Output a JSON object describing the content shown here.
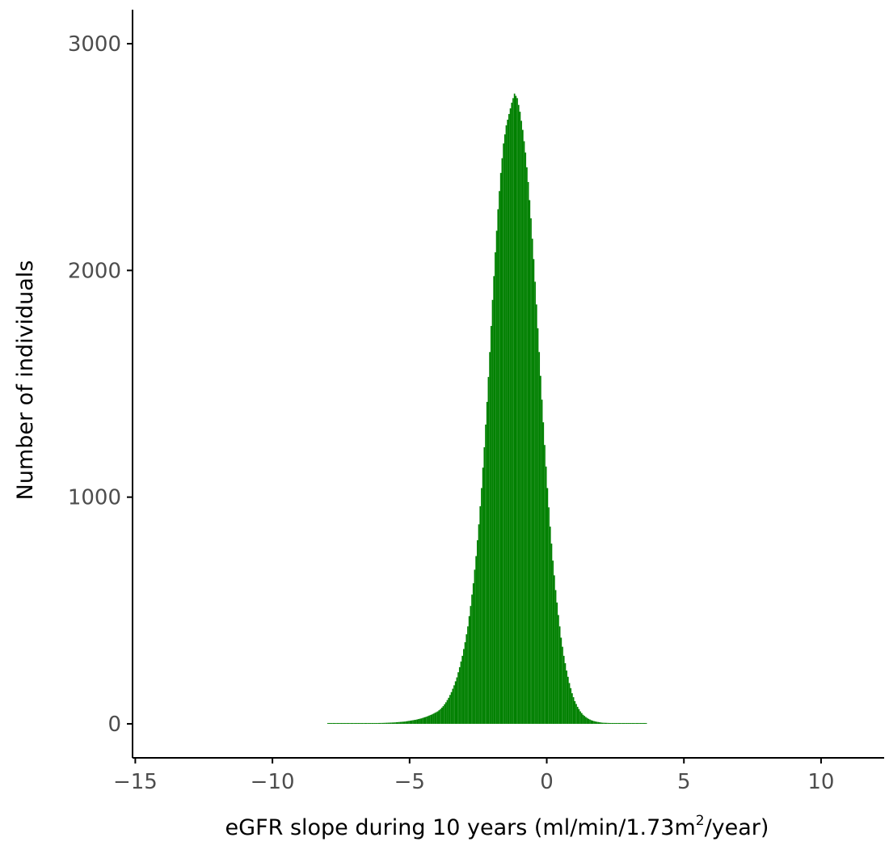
{
  "chart_data": {
    "type": "bar",
    "title": "",
    "xlabel": {
      "prefix": "eGFR slope during 10 years (ml/min/1.73m",
      "superscript": "2",
      "suffix": "/year)"
    },
    "ylabel": "Number of individuals",
    "xlim": [
      -15.1,
      12.3
    ],
    "ylim": [
      -150,
      3150
    ],
    "xticks": [
      -15,
      -10,
      -5,
      0,
      5,
      10
    ],
    "xtick_labels": [
      "−15",
      "−10",
      "−5",
      "0",
      "5",
      "10"
    ],
    "yticks": [
      0,
      1000,
      2000,
      3000
    ],
    "ytick_labels": [
      "0",
      "1000",
      "2000",
      "3000"
    ],
    "grid": false,
    "legend": "none",
    "bar_color": "#008000",
    "bin_width": 0.05,
    "bins_x": [
      -8.0,
      -7.5,
      -7.0,
      -6.5,
      -6.0,
      -5.8,
      -5.6,
      -5.4,
      -5.2,
      -5.0,
      -4.8,
      -4.6,
      -4.4,
      -4.2,
      -4.0,
      -3.9,
      -3.8,
      -3.7,
      -3.6,
      -3.5,
      -3.4,
      -3.3,
      -3.2,
      -3.1,
      -3.0,
      -2.9,
      -2.8,
      -2.7,
      -2.6,
      -2.5,
      -2.4,
      -2.3,
      -2.2,
      -2.1,
      -2.0,
      -1.9,
      -1.8,
      -1.7,
      -1.6,
      -1.5,
      -1.4,
      -1.3,
      -1.2,
      -1.1,
      -1.0,
      -0.9,
      -0.8,
      -0.7,
      -0.6,
      -0.5,
      -0.4,
      -0.3,
      -0.2,
      -0.1,
      0.0,
      0.1,
      0.2,
      0.3,
      0.4,
      0.5,
      0.6,
      0.7,
      0.8,
      0.9,
      1.0,
      1.1,
      1.2,
      1.3,
      1.4,
      1.5,
      1.6,
      1.7,
      1.8,
      1.9,
      2.0,
      2.2,
      2.4,
      2.6,
      2.8,
      3.0,
      3.2,
      3.4,
      3.6
    ],
    "bins_y": [
      2,
      2,
      2,
      3,
      4,
      5,
      6,
      8,
      10,
      14,
      18,
      24,
      32,
      42,
      55,
      65,
      78,
      95,
      115,
      140,
      170,
      205,
      250,
      300,
      360,
      430,
      520,
      620,
      740,
      880,
      1040,
      1220,
      1420,
      1640,
      1870,
      2080,
      2270,
      2430,
      2560,
      2640,
      2690,
      2740,
      2780,
      2760,
      2700,
      2620,
      2520,
      2390,
      2230,
      2050,
      1850,
      1640,
      1430,
      1230,
      1040,
      870,
      720,
      590,
      480,
      380,
      300,
      235,
      180,
      135,
      100,
      75,
      55,
      40,
      30,
      22,
      16,
      12,
      9,
      7,
      5,
      4,
      3,
      3,
      2,
      2,
      2,
      2,
      2
    ]
  }
}
